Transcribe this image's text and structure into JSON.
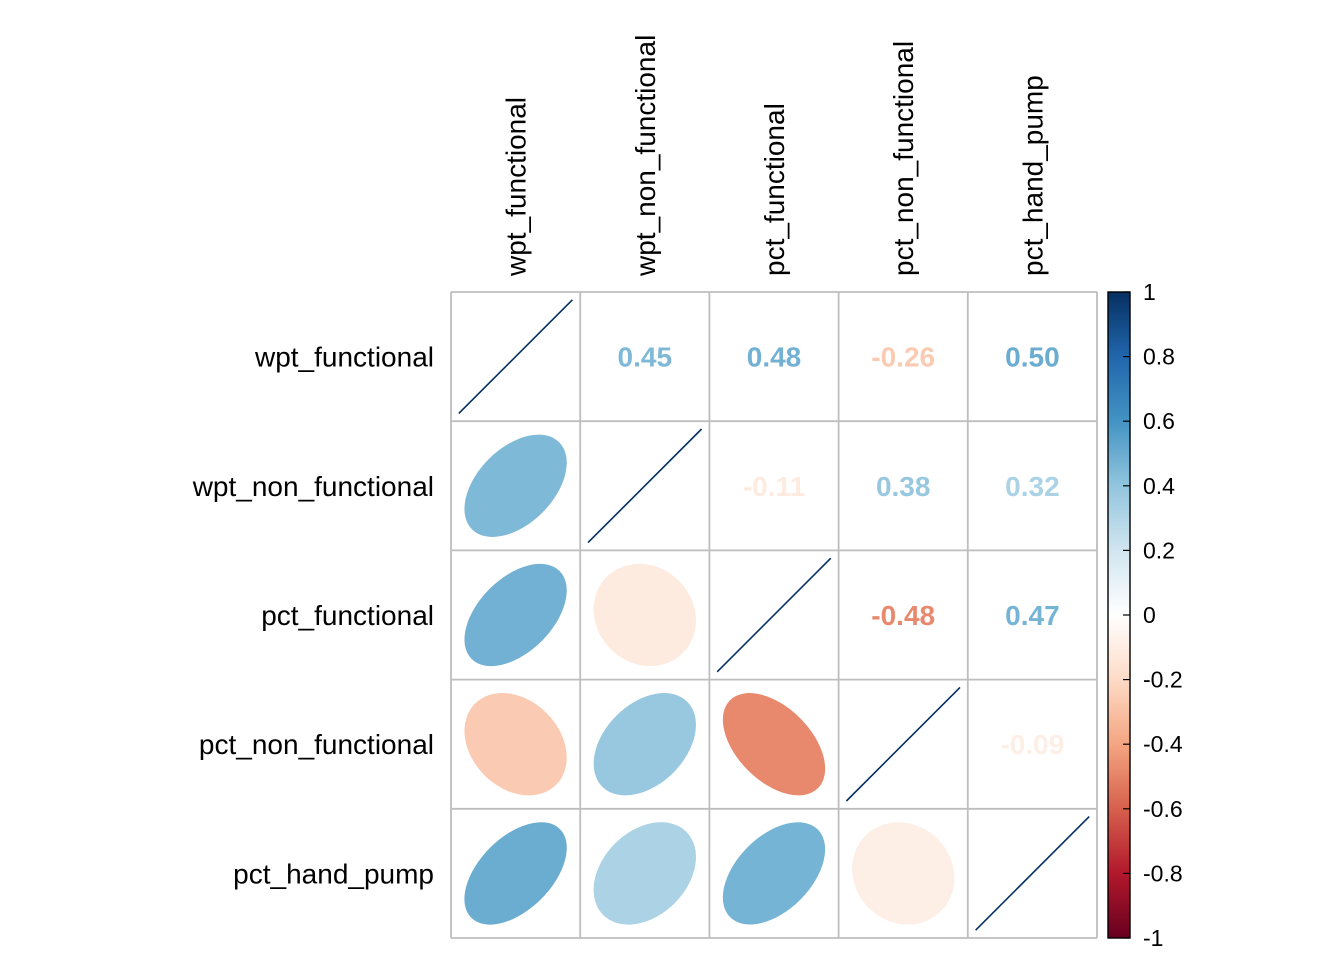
{
  "chart_data": {
    "type": "heatmap",
    "title": "",
    "variables": [
      "wpt_functional",
      "wpt_non_functional",
      "pct_functional",
      "pct_non_functional",
      "pct_hand_pump"
    ],
    "matrix": [
      [
        1.0,
        0.45,
        0.48,
        -0.26,
        0.5
      ],
      [
        0.45,
        1.0,
        -0.11,
        0.38,
        0.32
      ],
      [
        0.48,
        -0.11,
        1.0,
        -0.48,
        0.47
      ],
      [
        -0.26,
        0.38,
        -0.48,
        1.0,
        -0.09
      ],
      [
        0.5,
        0.32,
        0.47,
        -0.09,
        1.0
      ]
    ],
    "upper_labels": [
      [
        "",
        "0.45",
        "0.48",
        "-0.26",
        "0.50"
      ],
      [
        "",
        "",
        "-0.11",
        "0.38",
        "0.32"
      ],
      [
        "",
        "",
        "",
        "-0.48",
        "0.47"
      ],
      [
        "",
        "",
        "",
        "",
        "-0.09"
      ],
      [
        "",
        "",
        "",
        "",
        ""
      ]
    ],
    "lower_method": "ellipse",
    "upper_method": "number",
    "colorbar": {
      "range": [
        -1,
        1
      ],
      "ticks": [
        "1",
        "0.8",
        "0.6",
        "0.4",
        "0.2",
        "0",
        "-0.2",
        "-0.4",
        "-0.6",
        "-0.8",
        "-1"
      ],
      "tick_values": [
        1,
        0.8,
        0.6,
        0.4,
        0.2,
        0,
        -0.2,
        -0.4,
        -0.6,
        -0.8,
        -1
      ],
      "colors": [
        "#67001F",
        "#B2182B",
        "#D6604D",
        "#F4A582",
        "#FDDBC7",
        "#FFFFFF",
        "#D1E5F0",
        "#92C5DE",
        "#4393C3",
        "#2166AC",
        "#053061"
      ]
    },
    "grid": true,
    "grid_color": "#BEBEBE"
  }
}
